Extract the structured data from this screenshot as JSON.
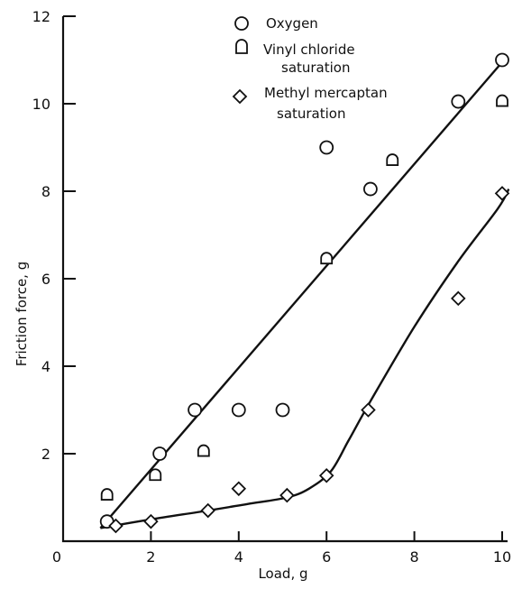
{
  "chart_data": {
    "type": "scatter",
    "xlabel": "Load, g",
    "ylabel": "Friction force, g",
    "xlim": [
      0,
      10
    ],
    "ylim": [
      0,
      12
    ],
    "x_ticks": [
      0,
      2,
      4,
      6,
      8,
      10
    ],
    "y_ticks": [
      2,
      4,
      6,
      8,
      10,
      12
    ],
    "grid": false,
    "legend_position": "top-center",
    "series": [
      {
        "name": "Oxygen",
        "marker": "circle",
        "points": [
          [
            1.0,
            0.45
          ],
          [
            2.2,
            2.0
          ],
          [
            3.0,
            3.0
          ],
          [
            4.0,
            3.0
          ],
          [
            5.0,
            3.0
          ],
          [
            6.0,
            9.0
          ],
          [
            7.0,
            8.05
          ],
          [
            9.0,
            10.05
          ],
          [
            10.0,
            11.0
          ]
        ]
      },
      {
        "name": "Vinyl chloride saturation",
        "legend_lines": [
          "Vinyl chloride",
          "saturation"
        ],
        "marker": "half-square",
        "points": [
          [
            1.0,
            1.05
          ],
          [
            2.1,
            1.5
          ],
          [
            3.2,
            2.05
          ],
          [
            6.0,
            6.45
          ],
          [
            7.5,
            8.7
          ],
          [
            10.0,
            10.05
          ]
        ]
      },
      {
        "name": "Methyl mercaptan saturation",
        "legend_lines": [
          "Methyl mercaptan",
          "saturation"
        ],
        "marker": "diamond",
        "points": [
          [
            1.2,
            0.35
          ],
          [
            2.0,
            0.45
          ],
          [
            3.3,
            0.7
          ],
          [
            4.0,
            1.2
          ],
          [
            5.1,
            1.05
          ],
          [
            6.0,
            1.5
          ],
          [
            6.95,
            3.0
          ],
          [
            9.0,
            5.55
          ],
          [
            10.0,
            7.95
          ]
        ]
      }
    ],
    "fit_lines": [
      {
        "shape": "straight",
        "points": [
          [
            0.85,
            0.3
          ],
          [
            10.0,
            10.95
          ]
        ]
      },
      {
        "shape": "curve",
        "points": [
          [
            0.85,
            0.3
          ],
          [
            2.0,
            0.5
          ],
          [
            3.3,
            0.7
          ],
          [
            4.2,
            0.85
          ],
          [
            5.1,
            1.0
          ],
          [
            5.6,
            1.2
          ],
          [
            6.1,
            1.6
          ],
          [
            6.5,
            2.3
          ],
          [
            7.0,
            3.2
          ],
          [
            8.0,
            4.9
          ],
          [
            9.0,
            6.4
          ],
          [
            9.9,
            7.6
          ],
          [
            10.15,
            8.05
          ]
        ]
      }
    ]
  }
}
